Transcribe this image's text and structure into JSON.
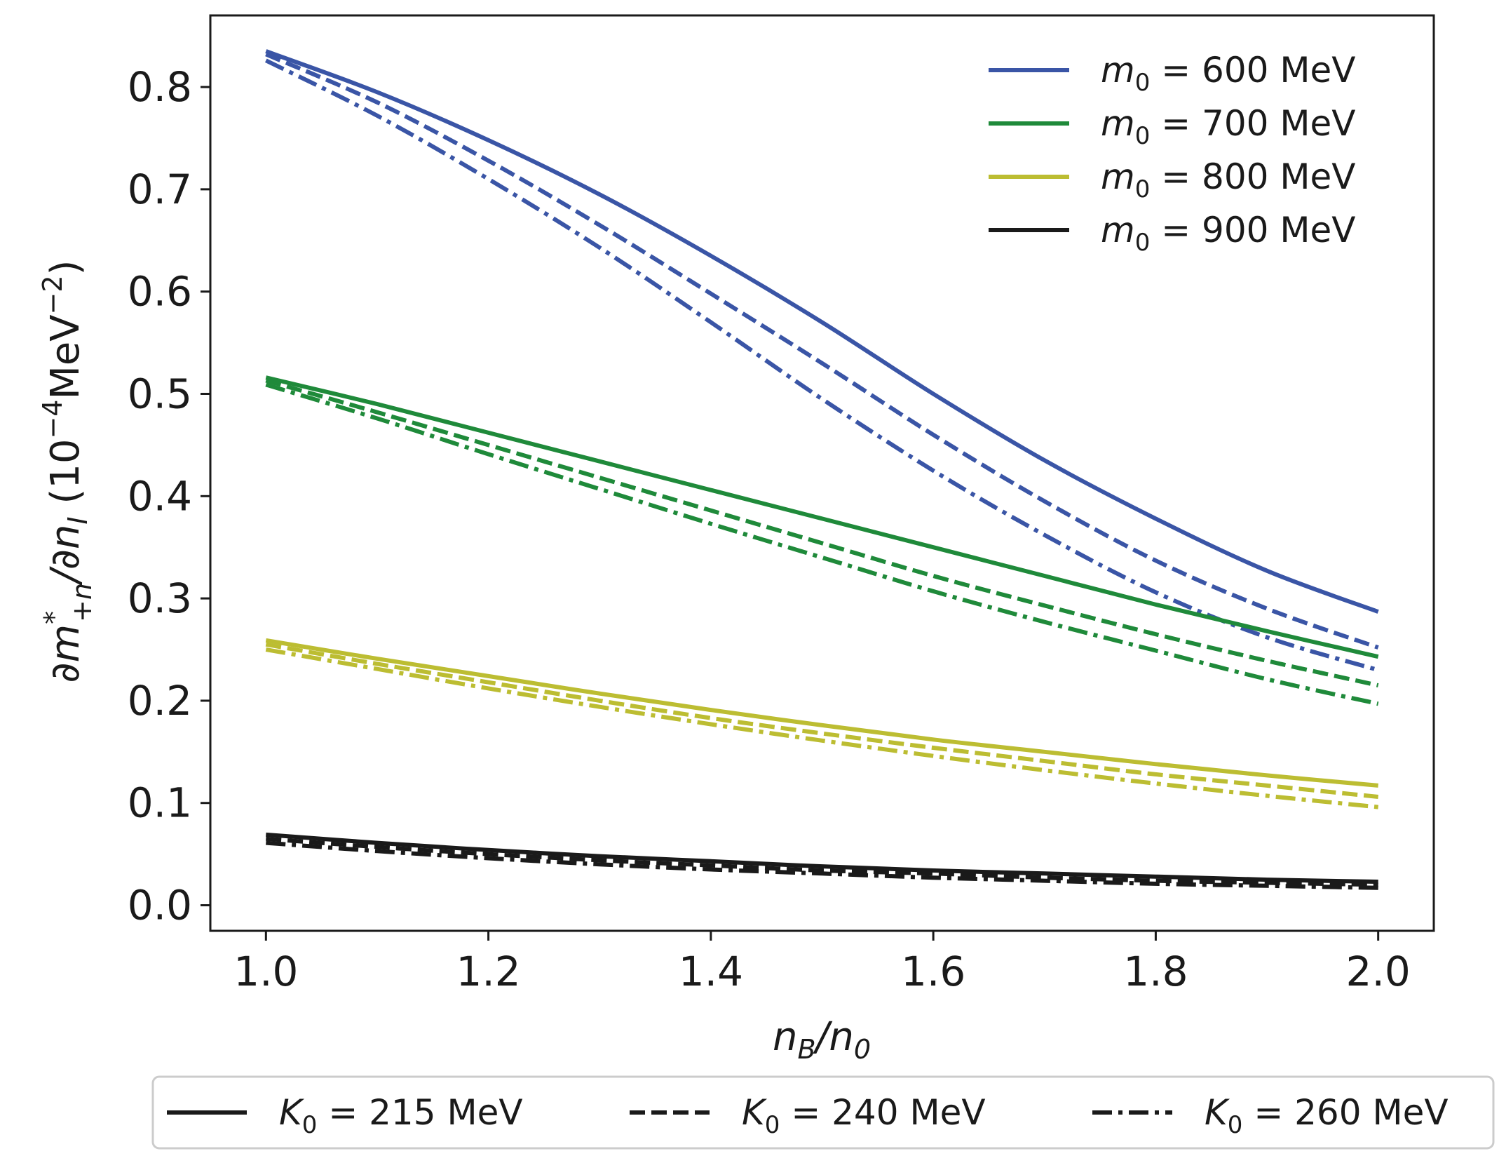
{
  "chart_data": {
    "type": "line",
    "title": "",
    "xlabel": "n_B/n_0",
    "ylabel": "∂m*_{+n}/∂n_I (10^{-4}MeV^{-2})",
    "xlim": [
      0.95,
      2.05
    ],
    "ylim": [
      -0.025,
      0.87
    ],
    "xticks": [
      "1.0",
      "1.2",
      "1.4",
      "1.6",
      "1.8",
      "2.0"
    ],
    "xtick_values": [
      1.0,
      1.2,
      1.4,
      1.6,
      1.8,
      2.0
    ],
    "yticks": [
      "0.0",
      "0.1",
      "0.2",
      "0.3",
      "0.4",
      "0.5",
      "0.6",
      "0.7",
      "0.8"
    ],
    "ytick_values": [
      0.0,
      0.1,
      0.2,
      0.3,
      0.4,
      0.5,
      0.6,
      0.7,
      0.8
    ],
    "grid": false,
    "x": [
      1.0,
      1.1,
      1.2,
      1.3,
      1.4,
      1.5,
      1.6,
      1.7,
      1.8,
      1.9,
      2.0
    ],
    "color_legend": {
      "position": "upper right",
      "entries": [
        {
          "var": "m",
          "sub": "0",
          "text": " = 600 MeV",
          "color": "#3a55a6"
        },
        {
          "var": "m",
          "sub": "0",
          "text": " = 700 MeV",
          "color": "#1f8a3a"
        },
        {
          "var": "m",
          "sub": "0",
          "text": " = 800 MeV",
          "color": "#bcbd32"
        },
        {
          "var": "m",
          "sub": "0",
          "text": " = 900 MeV",
          "color": "#1a1a1a"
        }
      ]
    },
    "style_legend": {
      "position": "below plot",
      "entries": [
        {
          "var": "K",
          "sub": "0",
          "text": " = 215 MeV",
          "style": "solid"
        },
        {
          "var": "K",
          "sub": "0",
          "text": " = 240 MeV",
          "style": "dashed"
        },
        {
          "var": "K",
          "sub": "0",
          "text": " = 260 MeV",
          "style": "dashdot"
        }
      ]
    },
    "series": [
      {
        "name": "m0=600 MeV, K0=215 MeV",
        "color": "#3a55a6",
        "style": "solid",
        "values": [
          0.835,
          0.795,
          0.748,
          0.695,
          0.635,
          0.57,
          0.5,
          0.435,
          0.378,
          0.327,
          0.287
        ]
      },
      {
        "name": "m0=600 MeV, K0=240 MeV",
        "color": "#3a55a6",
        "style": "dashed",
        "values": [
          0.832,
          0.785,
          0.728,
          0.665,
          0.598,
          0.53,
          0.46,
          0.395,
          0.337,
          0.29,
          0.252
        ]
      },
      {
        "name": "m0=600 MeV, K0=260 MeV",
        "color": "#3a55a6",
        "style": "dashdot",
        "values": [
          0.826,
          0.772,
          0.71,
          0.643,
          0.57,
          0.495,
          0.425,
          0.362,
          0.306,
          0.262,
          0.23
        ]
      },
      {
        "name": "m0=700 MeV, K0=215 MeV",
        "color": "#1f8a3a",
        "style": "solid",
        "values": [
          0.516,
          0.49,
          0.462,
          0.434,
          0.406,
          0.378,
          0.35,
          0.322,
          0.294,
          0.268,
          0.243
        ]
      },
      {
        "name": "m0=700 MeV, K0=240 MeV",
        "color": "#1f8a3a",
        "style": "dashed",
        "values": [
          0.513,
          0.482,
          0.45,
          0.418,
          0.386,
          0.354,
          0.322,
          0.293,
          0.265,
          0.239,
          0.215
        ]
      },
      {
        "name": "m0=700 MeV, K0=260 MeV",
        "color": "#1f8a3a",
        "style": "dashdot",
        "values": [
          0.509,
          0.476,
          0.441,
          0.407,
          0.373,
          0.34,
          0.307,
          0.277,
          0.249,
          0.221,
          0.197
        ]
      },
      {
        "name": "m0=800 MeV, K0=215 MeV",
        "color": "#bcbd32",
        "style": "solid",
        "values": [
          0.259,
          0.241,
          0.224,
          0.207,
          0.191,
          0.176,
          0.162,
          0.15,
          0.138,
          0.127,
          0.117
        ]
      },
      {
        "name": "m0=800 MeV, K0=240 MeV",
        "color": "#bcbd32",
        "style": "dashed",
        "values": [
          0.255,
          0.236,
          0.218,
          0.2,
          0.183,
          0.168,
          0.154,
          0.141,
          0.128,
          0.117,
          0.106
        ]
      },
      {
        "name": "m0=800 MeV, K0=260 MeV",
        "color": "#bcbd32",
        "style": "dashdot",
        "values": [
          0.25,
          0.231,
          0.212,
          0.194,
          0.177,
          0.161,
          0.146,
          0.132,
          0.119,
          0.107,
          0.096
        ]
      },
      {
        "name": "m0=900 MeV, K0=215 MeV",
        "color": "#1a1a1a",
        "style": "solid",
        "values": [
          0.069,
          0.061,
          0.054,
          0.048,
          0.043,
          0.038,
          0.034,
          0.031,
          0.028,
          0.025,
          0.023
        ]
      },
      {
        "name": "m0=900 MeV, K0=240 MeV",
        "color": "#1a1a1a",
        "style": "dashed",
        "values": [
          0.065,
          0.057,
          0.05,
          0.044,
          0.039,
          0.034,
          0.031,
          0.027,
          0.024,
          0.022,
          0.02
        ]
      },
      {
        "name": "m0=900 MeV, K0=260 MeV",
        "color": "#1a1a1a",
        "style": "dashdot",
        "values": [
          0.061,
          0.053,
          0.046,
          0.04,
          0.035,
          0.031,
          0.027,
          0.024,
          0.021,
          0.019,
          0.017
        ]
      }
    ]
  }
}
